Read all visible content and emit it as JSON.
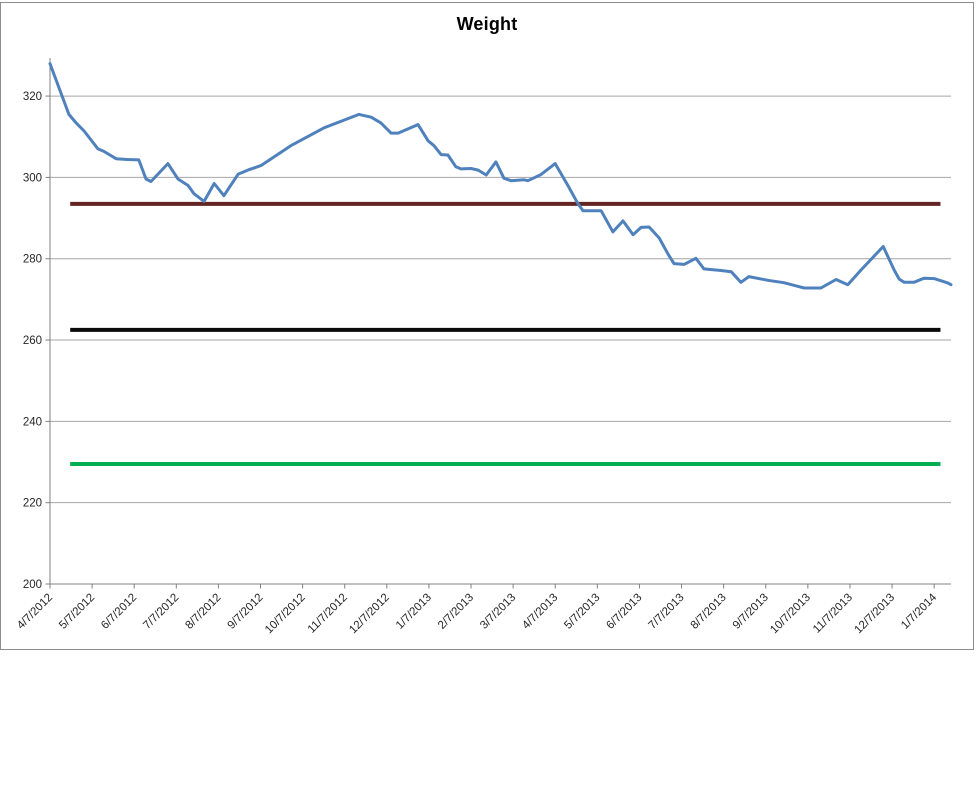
{
  "chart_data": {
    "type": "line",
    "title": "Weight",
    "xlabel": "",
    "ylabel": "",
    "legend": "none",
    "grid": "horizontal",
    "x_axis": {
      "tick_labels": [
        "4/7/2012",
        "5/7/2012",
        "6/7/2012",
        "7/7/2012",
        "8/7/2012",
        "9/7/2012",
        "10/7/2012",
        "11/7/2012",
        "12/7/2012",
        "1/7/2013",
        "2/7/2013",
        "3/7/2013",
        "4/7/2013",
        "5/7/2013",
        "6/7/2013",
        "7/7/2013",
        "8/7/2013",
        "9/7/2013",
        "10/7/2013",
        "11/7/2013",
        "12/7/2013",
        "1/7/2014"
      ],
      "min_month": 0,
      "max_month": 21.4
    },
    "y_axis": {
      "min": 200,
      "max": 330,
      "tick_step": 20,
      "tick_labels": [
        "200",
        "220",
        "240",
        "260",
        "280",
        "300",
        "320"
      ]
    },
    "series": [
      {
        "name": "Weight",
        "color": "#4F81BD",
        "stroke_width": 3,
        "points": [
          [
            0,
            328
          ],
          [
            0.45,
            315.5
          ],
          [
            0.62,
            313.4
          ],
          [
            0.81,
            311.4
          ],
          [
            1.14,
            307
          ],
          [
            1.28,
            306.4
          ],
          [
            1.57,
            304.6
          ],
          [
            1.83,
            304.4
          ],
          [
            2.11,
            304.3
          ],
          [
            2.28,
            299.6
          ],
          [
            2.4,
            299
          ],
          [
            2.8,
            303.4
          ],
          [
            3.04,
            299.6
          ],
          [
            3.28,
            298
          ],
          [
            3.42,
            296
          ],
          [
            3.66,
            294.1
          ],
          [
            3.9,
            298.5
          ],
          [
            4.13,
            295.5
          ],
          [
            4.47,
            300.8
          ],
          [
            4.7,
            301.8
          ],
          [
            5.01,
            302.9
          ],
          [
            5.72,
            307.8
          ],
          [
            6.51,
            312.2
          ],
          [
            7.34,
            315.5
          ],
          [
            7.63,
            314.8
          ],
          [
            7.86,
            313.4
          ],
          [
            8.1,
            310.9
          ],
          [
            8.27,
            310.9
          ],
          [
            8.65,
            312.6
          ],
          [
            8.74,
            313
          ],
          [
            8.98,
            309
          ],
          [
            9.12,
            307.8
          ],
          [
            9.29,
            305.6
          ],
          [
            9.45,
            305.5
          ],
          [
            9.64,
            302.6
          ],
          [
            9.76,
            302.1
          ],
          [
            10,
            302.2
          ],
          [
            10.17,
            301.8
          ],
          [
            10.36,
            300.6
          ],
          [
            10.59,
            303.8
          ],
          [
            10.78,
            299.8
          ],
          [
            10.95,
            299.2
          ],
          [
            11.26,
            299.4
          ],
          [
            11.35,
            299.2
          ],
          [
            11.66,
            300.7
          ],
          [
            12,
            303.4
          ],
          [
            12.3,
            298
          ],
          [
            12.54,
            293.5
          ],
          [
            12.66,
            291.8
          ],
          [
            13.09,
            291.8
          ],
          [
            13.37,
            286.6
          ],
          [
            13.61,
            289.3
          ],
          [
            13.85,
            285.9
          ],
          [
            14.04,
            287.7
          ],
          [
            14.23,
            287.8
          ],
          [
            14.47,
            285.1
          ],
          [
            14.68,
            281.1
          ],
          [
            14.82,
            278.8
          ],
          [
            15.06,
            278.6
          ],
          [
            15.34,
            280.1
          ],
          [
            15.53,
            277.5
          ],
          [
            15.94,
            277.1
          ],
          [
            16.18,
            276.8
          ],
          [
            16.41,
            274.2
          ],
          [
            16.6,
            275.6
          ],
          [
            17.05,
            274.7
          ],
          [
            17.43,
            274.1
          ],
          [
            17.77,
            273.2
          ],
          [
            17.91,
            272.8
          ],
          [
            18.31,
            272.8
          ],
          [
            18.67,
            274.9
          ],
          [
            18.95,
            273.6
          ],
          [
            19.26,
            277.2
          ],
          [
            19.79,
            283
          ],
          [
            20.05,
            277.2
          ],
          [
            20.17,
            275
          ],
          [
            20.29,
            274.2
          ],
          [
            20.52,
            274.2
          ],
          [
            20.76,
            275.2
          ],
          [
            21,
            275.1
          ],
          [
            21.33,
            274
          ],
          [
            21.4,
            273.6
          ]
        ]
      }
    ],
    "reference_lines": [
      {
        "name": "upper-goal-line",
        "value": 293.5,
        "color": "#632423",
        "stroke_width": 4,
        "start_month": 0.48,
        "end_month": 21.15
      },
      {
        "name": "middle-goal-line",
        "value": 262.5,
        "color": "#0a0a0a",
        "stroke_width": 4,
        "start_month": 0.48,
        "end_month": 21.15
      },
      {
        "name": "lower-goal-line",
        "value": 229.5,
        "color": "#00B050",
        "stroke_width": 4,
        "start_month": 0.48,
        "end_month": 21.15
      }
    ],
    "colors": {
      "gridline": "#a6a6a6",
      "axis": "#808080",
      "tick_label": "#262626",
      "frame_border": "#8c8c8c"
    }
  }
}
